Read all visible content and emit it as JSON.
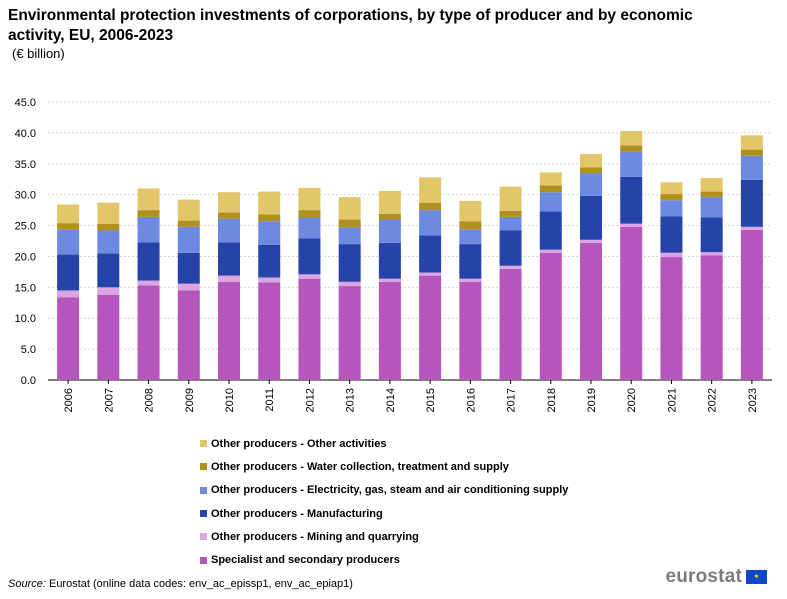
{
  "chart_data": {
    "type": "bar",
    "stacked": true,
    "title": "Environmental protection investments of corporations, by type of producer and by economic activity, EU, 2006-2023",
    "subtitle": "(€ billion)",
    "xlabel": "",
    "ylabel": "",
    "ylim": [
      0,
      45
    ],
    "yticks": [
      "0.0",
      "5.0",
      "10.0",
      "15.0",
      "20.0",
      "25.0",
      "30.0",
      "35.0",
      "40.0",
      "45.0"
    ],
    "grid": true,
    "legend_position": "bottom",
    "categories": [
      "2006",
      "2007",
      "2008",
      "2009",
      "2010",
      "2011",
      "2012",
      "2013",
      "2014",
      "2015",
      "2016",
      "2017",
      "2018",
      "2019",
      "2020",
      "2021",
      "2022",
      "2023"
    ],
    "series": [
      {
        "name": "Specialist and secondary producers",
        "color": "#b656bd",
        "values": [
          13.4,
          13.8,
          15.3,
          14.5,
          15.9,
          15.8,
          16.4,
          15.2,
          15.9,
          16.9,
          15.9,
          18.0,
          20.6,
          22.2,
          24.8,
          19.9,
          20.2,
          24.3
        ]
      },
      {
        "name": "Other producers - Mining and quarrying",
        "color": "#dba5e3",
        "values": [
          1.1,
          1.2,
          0.8,
          1.1,
          1.0,
          0.8,
          0.7,
          0.7,
          0.5,
          0.5,
          0.5,
          0.5,
          0.5,
          0.5,
          0.5,
          0.7,
          0.5,
          0.5
        ]
      },
      {
        "name": "Other producers - Manufacturing",
        "color": "#2644a7",
        "values": [
          5.8,
          5.5,
          6.2,
          5.0,
          5.4,
          5.3,
          5.8,
          6.1,
          5.8,
          6.0,
          5.6,
          5.7,
          6.2,
          7.1,
          7.6,
          5.9,
          5.6,
          7.6
        ]
      },
      {
        "name": "Other producers - Electricity, gas, steam and air conditioning supply",
        "color": "#6d8ae1",
        "values": [
          4.0,
          3.7,
          4.1,
          4.2,
          3.8,
          3.8,
          3.4,
          2.7,
          3.7,
          4.1,
          2.4,
          2.2,
          3.1,
          3.7,
          4.1,
          2.6,
          3.3,
          3.9
        ]
      },
      {
        "name": "Other producers - Water collection, treatment and supply",
        "color": "#b09120",
        "values": [
          1.1,
          1.1,
          1.1,
          1.0,
          1.0,
          1.1,
          1.2,
          1.3,
          1.0,
          1.2,
          1.3,
          1.0,
          1.1,
          0.9,
          1.0,
          1.0,
          0.9,
          1.0
        ]
      },
      {
        "name": "Other producers - Other activities",
        "color": "#e3c66a",
        "values": [
          3.0,
          3.4,
          3.5,
          3.4,
          3.3,
          3.7,
          3.6,
          3.6,
          3.7,
          4.1,
          3.3,
          3.9,
          2.1,
          2.2,
          2.3,
          1.9,
          2.2,
          2.3
        ]
      }
    ]
  },
  "source": {
    "label": "Source:",
    "text": " Eurostat (online data codes:  env_ac_epissp1, env_ac_epiap1)"
  },
  "logo": {
    "text": "eurostat",
    "flag_stars": "✶",
    "flag_color": "#0e47cb"
  }
}
